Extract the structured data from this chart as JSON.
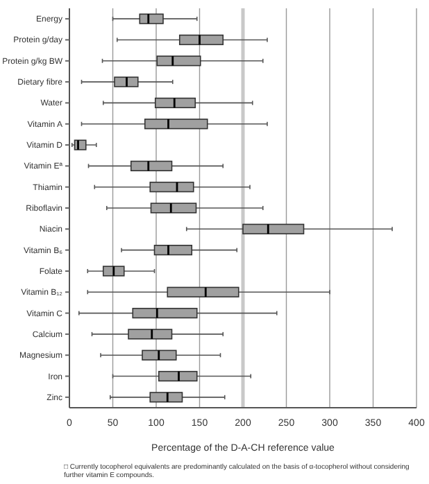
{
  "chart_data": {
    "type": "box",
    "orientation": "horizontal",
    "xlabel": "Percentage of the D-A-CH reference value",
    "categories": [
      "Energy",
      "Protein g/day",
      "Protein g/kg BW",
      "Dietary fibre",
      "Water",
      "Vitamin A",
      "Vitamin D",
      "Vitamin Eª",
      "Thiamin",
      "Riboflavin",
      "Niacin",
      "Vitamin B₆",
      "Folate",
      "Vitamin B₁₂",
      "Vitamin C",
      "Calcium",
      "Magnesium",
      "Iron",
      "Zinc"
    ],
    "boxes": [
      {
        "low": 50,
        "q1": 81,
        "median": 91,
        "q3": 108,
        "high": 147
      },
      {
        "low": 55,
        "q1": 127,
        "median": 150,
        "q3": 177,
        "high": 228
      },
      {
        "low": 38,
        "q1": 101,
        "median": 119,
        "q3": 151,
        "high": 223
      },
      {
        "low": 14,
        "q1": 52,
        "median": 66,
        "q3": 79,
        "high": 119
      },
      {
        "low": 39,
        "q1": 99,
        "median": 121,
        "q3": 145,
        "high": 211
      },
      {
        "low": 14,
        "q1": 87,
        "median": 114,
        "q3": 159,
        "high": 228
      },
      {
        "low": 3,
        "q1": 6,
        "median": 10,
        "q3": 19,
        "high": 31
      },
      {
        "low": 22,
        "q1": 71,
        "median": 91,
        "q3": 118,
        "high": 177
      },
      {
        "low": 29,
        "q1": 93,
        "median": 124,
        "q3": 143,
        "high": 208
      },
      {
        "low": 43,
        "q1": 94,
        "median": 117,
        "q3": 146,
        "high": 223
      },
      {
        "low": 135,
        "q1": 200,
        "median": 229,
        "q3": 270,
        "high": 372
      },
      {
        "low": 60,
        "q1": 98,
        "median": 114,
        "q3": 141,
        "high": 193
      },
      {
        "low": 21,
        "q1": 39,
        "median": 51,
        "q3": 63,
        "high": 98
      },
      {
        "low": 21,
        "q1": 113,
        "median": 157,
        "q3": 195,
        "high": 300
      },
      {
        "low": 11,
        "q1": 73,
        "median": 101,
        "q3": 147,
        "high": 239
      },
      {
        "low": 26,
        "q1": 68,
        "median": 95,
        "q3": 118,
        "high": 177
      },
      {
        "low": 36,
        "q1": 84,
        "median": 103,
        "q3": 123,
        "high": 174
      },
      {
        "low": 50,
        "q1": 103,
        "median": 126,
        "q3": 147,
        "high": 209
      },
      {
        "low": 47,
        "q1": 93,
        "median": 113,
        "q3": 130,
        "high": 179
      }
    ],
    "color": "#a0a0a0",
    "xlim": [
      0,
      400
    ],
    "xticks": [
      0,
      50,
      100,
      150,
      200,
      250,
      300,
      350,
      400
    ],
    "grid": "x",
    "ref_lines": [
      {
        "axis": "x",
        "value": 200,
        "color": "#c8c8c8"
      }
    ],
    "annotations": [
      "□ Currently tocopherol equivalents are predominantly calculated on the basis of α-tocopherol without considering further vitamin E compounds."
    ]
  }
}
